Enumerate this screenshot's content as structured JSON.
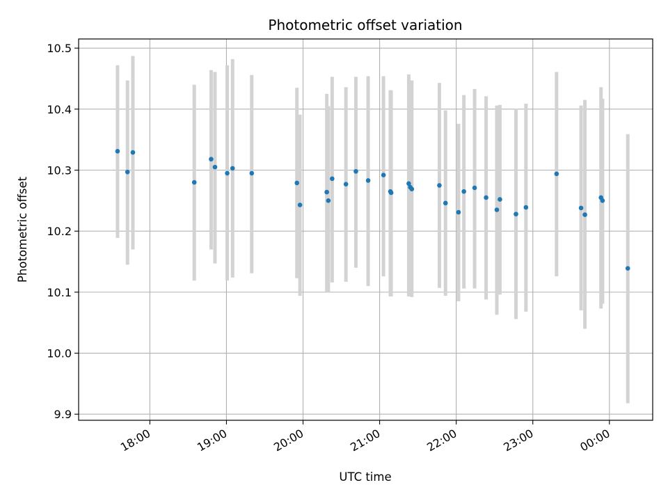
{
  "chart_data": {
    "type": "scatter",
    "title": "Photometric offset variation",
    "xlabel": "UTC time",
    "ylabel": "Photometric offset",
    "x_unit": "UTC time (hours)",
    "xlim": [
      17.07,
      24.565
    ],
    "ylim": [
      9.89,
      10.515
    ],
    "grid": true,
    "legend": "none",
    "colors": {
      "point": "#1f77b4",
      "errorbar": "#d3d3d3",
      "grid": "#b0b0b0"
    },
    "x_ticks": [
      {
        "value": 18,
        "label": "18:00"
      },
      {
        "value": 19,
        "label": "19:00"
      },
      {
        "value": 20,
        "label": "20:00"
      },
      {
        "value": 21,
        "label": "21:00"
      },
      {
        "value": 22,
        "label": "22:00"
      },
      {
        "value": 23,
        "label": "23:00"
      },
      {
        "value": 24,
        "label": "00:00"
      }
    ],
    "y_ticks": [
      {
        "value": 9.9,
        "label": "9.9"
      },
      {
        "value": 10.0,
        "label": "10.0"
      },
      {
        "value": 10.1,
        "label": "10.1"
      },
      {
        "value": 10.2,
        "label": "10.2"
      },
      {
        "value": 10.3,
        "label": "10.3"
      },
      {
        "value": 10.4,
        "label": "10.4"
      },
      {
        "value": 10.5,
        "label": "10.5"
      }
    ],
    "points": [
      {
        "x": 17.578,
        "y": 10.331,
        "ylow": 10.189,
        "yhigh": 10.472
      },
      {
        "x": 17.708,
        "y": 10.297,
        "ylow": 10.145,
        "yhigh": 10.447
      },
      {
        "x": 17.778,
        "y": 10.329,
        "ylow": 10.17,
        "yhigh": 10.487
      },
      {
        "x": 18.58,
        "y": 10.28,
        "ylow": 10.119,
        "yhigh": 10.44
      },
      {
        "x": 18.8,
        "y": 10.318,
        "ylow": 10.17,
        "yhigh": 10.464
      },
      {
        "x": 18.85,
        "y": 10.305,
        "ylow": 10.147,
        "yhigh": 10.461
      },
      {
        "x": 19.01,
        "y": 10.295,
        "ylow": 10.119,
        "yhigh": 10.472
      },
      {
        "x": 19.08,
        "y": 10.303,
        "ylow": 10.124,
        "yhigh": 10.482
      },
      {
        "x": 19.33,
        "y": 10.295,
        "ylow": 10.131,
        "yhigh": 10.456
      },
      {
        "x": 19.92,
        "y": 10.279,
        "ylow": 10.123,
        "yhigh": 10.435
      },
      {
        "x": 19.96,
        "y": 10.243,
        "ylow": 10.094,
        "yhigh": 10.391
      },
      {
        "x": 20.31,
        "y": 10.264,
        "ylow": 10.101,
        "yhigh": 10.425
      },
      {
        "x": 20.33,
        "y": 10.25,
        "ylow": 10.101,
        "yhigh": 10.405
      },
      {
        "x": 20.38,
        "y": 10.286,
        "ylow": 10.116,
        "yhigh": 10.453
      },
      {
        "x": 20.56,
        "y": 10.277,
        "ylow": 10.117,
        "yhigh": 10.436
      },
      {
        "x": 20.69,
        "y": 10.298,
        "ylow": 10.14,
        "yhigh": 10.453
      },
      {
        "x": 20.85,
        "y": 10.283,
        "ylow": 10.11,
        "yhigh": 10.454
      },
      {
        "x": 21.05,
        "y": 10.292,
        "ylow": 10.126,
        "yhigh": 10.454
      },
      {
        "x": 21.14,
        "y": 10.265,
        "ylow": 10.093,
        "yhigh": 10.431
      },
      {
        "x": 21.15,
        "y": 10.263,
        "ylow": 10.093,
        "yhigh": 10.431
      },
      {
        "x": 21.38,
        "y": 10.278,
        "ylow": 10.093,
        "yhigh": 10.457
      },
      {
        "x": 21.4,
        "y": 10.272,
        "ylow": 10.093,
        "yhigh": 10.447
      },
      {
        "x": 21.42,
        "y": 10.269,
        "ylow": 10.092,
        "yhigh": 10.447
      },
      {
        "x": 21.78,
        "y": 10.275,
        "ylow": 10.107,
        "yhigh": 10.443
      },
      {
        "x": 21.86,
        "y": 10.246,
        "ylow": 10.094,
        "yhigh": 10.398
      },
      {
        "x": 22.03,
        "y": 10.231,
        "ylow": 10.085,
        "yhigh": 10.376
      },
      {
        "x": 22.1,
        "y": 10.265,
        "ylow": 10.106,
        "yhigh": 10.423
      },
      {
        "x": 22.24,
        "y": 10.271,
        "ylow": 10.106,
        "yhigh": 10.433
      },
      {
        "x": 22.39,
        "y": 10.255,
        "ylow": 10.088,
        "yhigh": 10.421
      },
      {
        "x": 22.53,
        "y": 10.235,
        "ylow": 10.063,
        "yhigh": 10.406
      },
      {
        "x": 22.57,
        "y": 10.252,
        "ylow": 10.096,
        "yhigh": 10.407
      },
      {
        "x": 22.78,
        "y": 10.228,
        "ylow": 10.056,
        "yhigh": 10.401
      },
      {
        "x": 22.91,
        "y": 10.239,
        "ylow": 10.068,
        "yhigh": 10.409
      },
      {
        "x": 23.31,
        "y": 10.294,
        "ylow": 10.126,
        "yhigh": 10.461
      },
      {
        "x": 23.63,
        "y": 10.238,
        "ylow": 10.07,
        "yhigh": 10.406
      },
      {
        "x": 23.68,
        "y": 10.227,
        "ylow": 10.04,
        "yhigh": 10.415
      },
      {
        "x": 23.89,
        "y": 10.255,
        "ylow": 10.073,
        "yhigh": 10.436
      },
      {
        "x": 23.91,
        "y": 10.25,
        "ylow": 10.081,
        "yhigh": 10.417
      },
      {
        "x": 24.24,
        "y": 10.139,
        "ylow": 9.918,
        "yhigh": 10.359
      }
    ]
  }
}
